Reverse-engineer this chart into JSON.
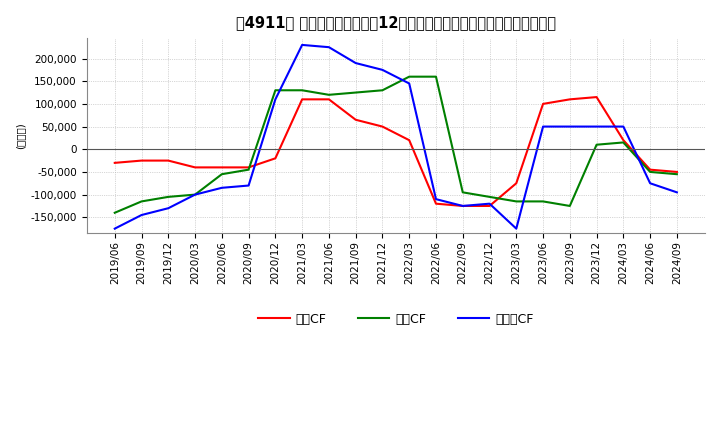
{
  "title": "［4911］ キャッシュフローの12か月移動合計の対前年同期増減額の推移",
  "ylabel": "(百万円)",
  "ylim": [
    -185000,
    245000
  ],
  "yticks": [
    -150000,
    -100000,
    -50000,
    0,
    50000,
    100000,
    150000,
    200000
  ],
  "dates": [
    "2019/06",
    "2019/09",
    "2019/12",
    "2020/03",
    "2020/06",
    "2020/09",
    "2020/12",
    "2021/03",
    "2021/06",
    "2021/09",
    "2021/12",
    "2022/03",
    "2022/06",
    "2022/09",
    "2022/12",
    "2023/03",
    "2023/06",
    "2023/09",
    "2023/12",
    "2024/03",
    "2024/06",
    "2024/09"
  ],
  "operating_cf": [
    -30000,
    -25000,
    -25000,
    -40000,
    -40000,
    -40000,
    -20000,
    110000,
    110000,
    65000,
    50000,
    20000,
    -120000,
    -125000,
    -125000,
    -75000,
    100000,
    110000,
    115000,
    20000,
    -45000,
    -50000
  ],
  "investing_cf": [
    -140000,
    -115000,
    -105000,
    -100000,
    -55000,
    -45000,
    130000,
    130000,
    120000,
    125000,
    130000,
    160000,
    160000,
    -95000,
    -105000,
    -115000,
    -115000,
    -125000,
    10000,
    15000,
    -50000,
    -55000
  ],
  "free_cf": [
    -175000,
    -145000,
    -130000,
    -100000,
    -85000,
    -80000,
    110000,
    230000,
    225000,
    190000,
    175000,
    145000,
    -110000,
    -125000,
    -120000,
    -175000,
    50000,
    50000,
    50000,
    50000,
    -75000,
    -95000
  ],
  "operating_color": "#ff0000",
  "investing_color": "#008000",
  "free_color": "#0000ff",
  "legend_labels": [
    "営業CF",
    "投資CF",
    "フリーCF"
  ],
  "background_color": "#ffffff",
  "grid_color": "#b0b0b0",
  "title_fontsize": 10.5,
  "axis_fontsize": 7.5,
  "legend_fontsize": 9
}
